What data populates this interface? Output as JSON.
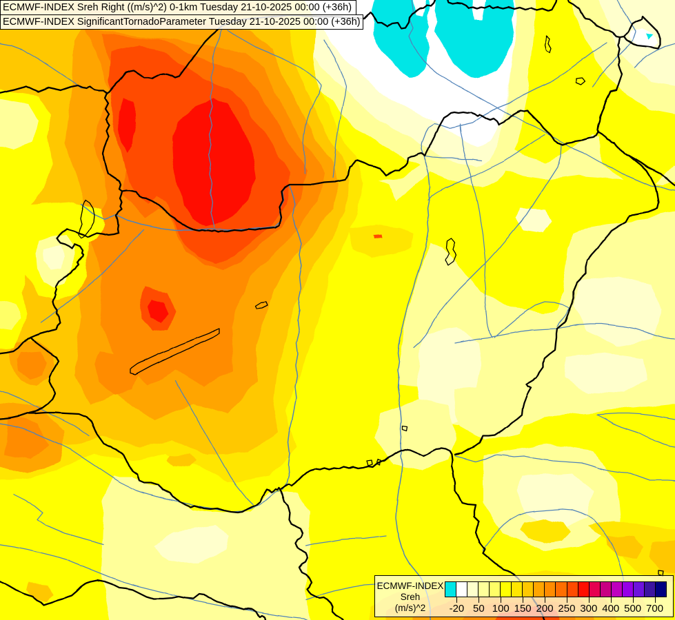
{
  "header": {
    "line1": "ECMWF-INDEX Sreh Right ((m/s)^2) 0-1km Tuesday 21-10-2025 00:00 (+36h)",
    "line2": "ECMWF-INDEX SignificantTornadoParameter Tuesday 21-10-2025 00:00 (+36h)"
  },
  "legend": {
    "title_line1": "ECMWF-INDEX",
    "title_line2": "Sreh",
    "title_line3": "(m/s)^2",
    "ticks": [
      "-20",
      "50",
      "100",
      "150",
      "200",
      "250",
      "300",
      "400",
      "500",
      "700"
    ],
    "palette": [
      "#00E6E6",
      "#FFFFFF",
      "#FFFFCC",
      "#FFFF99",
      "#FFFF66",
      "#FFFF00",
      "#FFE600",
      "#FFC800",
      "#FFA500",
      "#FF8C00",
      "#FF6E00",
      "#FF4B00",
      "#FF0F00",
      "#E60050",
      "#C80082",
      "#BE00BE",
      "#9600E6",
      "#6E14DC",
      "#3C14A0",
      "#000080"
    ]
  },
  "map": {
    "border_color": "#000000",
    "river_color": "#5183b8",
    "lake_outline_color": "#000000"
  }
}
